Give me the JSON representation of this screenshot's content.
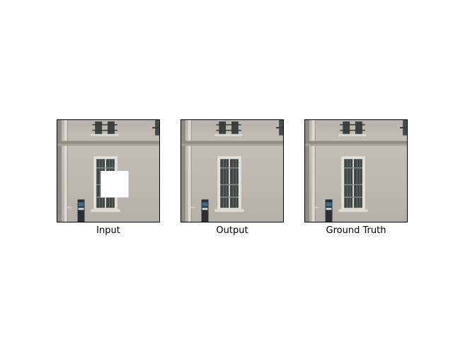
{
  "panels": [
    {
      "id": "input",
      "label": "Input",
      "masked": true
    },
    {
      "id": "output",
      "label": "Output",
      "masked": false
    },
    {
      "id": "ground_truth",
      "label": "Ground Truth",
      "masked": false
    }
  ],
  "colors": {
    "wall": "#bdb8b0",
    "wall_shadow": "#a9a49c",
    "ledge": "#8f8a82",
    "window_dark": "#3f4646",
    "window_frame": "#e4e1da",
    "pipe": "#d6d3cc",
    "mask": "#ffffff"
  }
}
